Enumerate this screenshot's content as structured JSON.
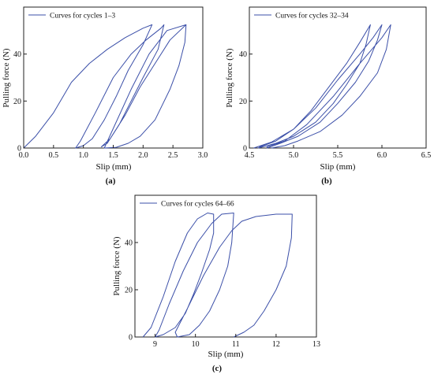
{
  "panels": [
    {
      "id": "a",
      "label": "(a)",
      "legend": "Curves for cycles 1–3",
      "xlabel": "Slip (mm)",
      "ylabel": "Pulling force (N)",
      "xticks": [
        "0.0",
        "0.5",
        "1.0",
        "1.5",
        "2.0",
        "2.5",
        "3.0"
      ],
      "yticks": [
        "0",
        "20",
        "40"
      ]
    },
    {
      "id": "b",
      "label": "(b)",
      "legend": "Curves for cycles 32–34",
      "xlabel": "Slip (mm)",
      "ylabel": "Pulling force (N)",
      "xticks": [
        "4.5",
        "5.0",
        "5.5",
        "6.0",
        "6.5"
      ],
      "yticks": [
        "0",
        "20",
        "40"
      ]
    },
    {
      "id": "c",
      "label": "(c)",
      "legend": "Curves for cycles 64–66",
      "xlabel": "Slip (mm)",
      "ylabel": "Pulling force (N)",
      "xticks": [
        "9",
        "10",
        "11",
        "12",
        "13"
      ],
      "yticks": [
        "0",
        "20",
        "40"
      ]
    }
  ],
  "line_color": "#3b4fa8",
  "chart_data": [
    {
      "type": "line",
      "panel": "a",
      "xlim": [
        0,
        3
      ],
      "ylim": [
        0,
        60
      ],
      "series": [
        {
          "name": "Curves for cycles 1–3",
          "x": [
            0,
            0.2,
            0.5,
            0.8,
            1.1,
            1.4,
            1.7,
            2.0,
            2.15,
            2.0,
            1.75,
            1.55,
            1.35,
            1.15,
            1.0,
            0.87,
            0.95,
            1.2,
            1.5,
            1.8,
            2.05,
            2.3,
            2.35,
            2.25,
            2.0,
            1.8,
            1.6,
            1.45,
            1.3,
            1.4,
            1.7,
            1.95,
            2.25,
            2.45,
            2.72,
            2.7,
            2.6,
            2.45,
            2.2,
            1.95,
            1.75,
            1.55,
            1.35,
            1.8,
            2.1,
            2.4,
            2.72
          ],
          "y": [
            0,
            5,
            15,
            28,
            36,
            42,
            47,
            51,
            52.5,
            44,
            33,
            22,
            12,
            4,
            1,
            0,
            3,
            15,
            30,
            40,
            46,
            51,
            52.5,
            42,
            30,
            20,
            10,
            4,
            0.5,
            2,
            14,
            26,
            38,
            46,
            52.5,
            45,
            35,
            25,
            12,
            5,
            2,
            0.3,
            0,
            25,
            40,
            50,
            52.5
          ]
        }
      ]
    },
    {
      "type": "line",
      "panel": "b",
      "xlim": [
        4.5,
        6.5
      ],
      "ylim": [
        0,
        60
      ],
      "series": [
        {
          "name": "Curves for cycles 32–34",
          "x": [
            4.55,
            4.75,
            5.0,
            5.2,
            5.4,
            5.6,
            5.75,
            5.87,
            5.82,
            5.75,
            5.6,
            5.45,
            5.25,
            5.0,
            4.8,
            4.6,
            4.62,
            4.8,
            5.0,
            5.25,
            5.5,
            5.75,
            5.9,
            6.0,
            5.95,
            5.85,
            5.7,
            5.5,
            5.3,
            5.05,
            4.85,
            4.7,
            4.7,
            4.9,
            5.15,
            5.45,
            5.75,
            6.0,
            6.1,
            6.05,
            5.95,
            5.75,
            5.55,
            5.3,
            5.05,
            4.9,
            4.75
          ],
          "y": [
            0,
            2.5,
            8,
            16,
            26,
            36,
            45,
            52.5,
            44,
            36,
            27,
            19,
            11,
            5,
            2,
            0,
            0.5,
            3,
            8,
            17,
            29,
            40,
            47,
            52.5,
            46,
            37,
            28,
            19,
            11,
            5,
            2,
            0,
            0.5,
            3,
            10,
            22,
            36,
            47,
            52.5,
            42,
            32,
            22,
            14,
            7,
            3,
            1,
            0
          ]
        }
      ]
    },
    {
      "type": "line",
      "panel": "c",
      "xlim": [
        8.5,
        13
      ],
      "ylim": [
        0,
        60
      ],
      "series": [
        {
          "name": "Curves for cycles 64–66",
          "x": [
            8.7,
            8.9,
            9.2,
            9.5,
            9.8,
            10.05,
            10.3,
            10.45,
            10.45,
            10.35,
            10.15,
            9.95,
            9.75,
            9.5,
            9.2,
            9.0,
            9.1,
            9.35,
            9.7,
            10.05,
            10.4,
            10.65,
            10.95,
            10.9,
            10.8,
            10.6,
            10.35,
            10.1,
            9.85,
            9.55,
            9.5,
            9.8,
            10.2,
            10.6,
            10.9,
            11.15,
            11.5,
            12.0,
            12.4,
            12.38,
            12.25,
            12.0,
            11.7,
            11.45,
            11.2,
            10.95
          ],
          "y": [
            0,
            4,
            17,
            32,
            44,
            50,
            52.5,
            52,
            44,
            37,
            27,
            18,
            10,
            4,
            1,
            0,
            3,
            14,
            28,
            40,
            48,
            52,
            52.5,
            40,
            30,
            20,
            11,
            5,
            1,
            0,
            2,
            12,
            26,
            38,
            45,
            49,
            51,
            52,
            52,
            42,
            30,
            20,
            11,
            5,
            2,
            0
          ]
        }
      ]
    }
  ]
}
